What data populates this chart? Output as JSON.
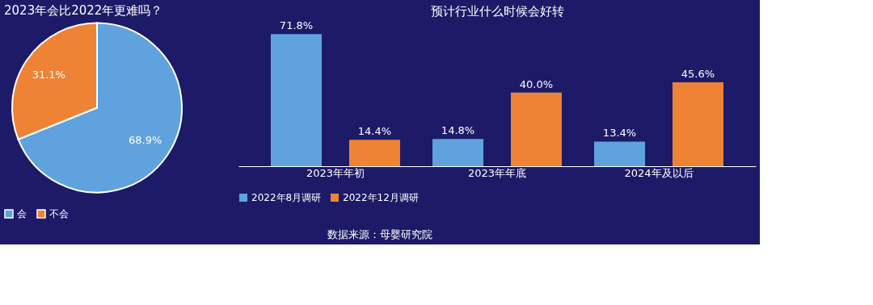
{
  "chart_data": [
    {
      "type": "pie",
      "title": "2023年会比2022年更难吗？",
      "categories": [
        "会",
        "不会"
      ],
      "values": [
        68.9,
        31.1
      ],
      "colors": [
        "#5fa2dd",
        "#ee8336"
      ],
      "value_labels": [
        "68.9%",
        "31.1%"
      ],
      "legend": "bottom"
    },
    {
      "type": "bar",
      "title": "预计行业什么时候会好转",
      "categories": [
        "2023年年初",
        "2023年年底",
        "2024年及以后"
      ],
      "series": [
        {
          "name": "2022年8月调研",
          "color": "#5fa2dd",
          "values": [
            71.8,
            14.8,
            13.4
          ],
          "value_labels": [
            "71.8%",
            "14.8%",
            "13.4%"
          ]
        },
        {
          "name": "2022年12月调研",
          "color": "#ee8336",
          "values": [
            14.4,
            40.0,
            45.6
          ],
          "value_labels": [
            "14.4%",
            "40.0%",
            "45.6%"
          ]
        }
      ],
      "legend": "bottom",
      "tick_labels": "x",
      "grid": false,
      "annotations": [
        "数据来源：母婴研究院"
      ]
    }
  ]
}
